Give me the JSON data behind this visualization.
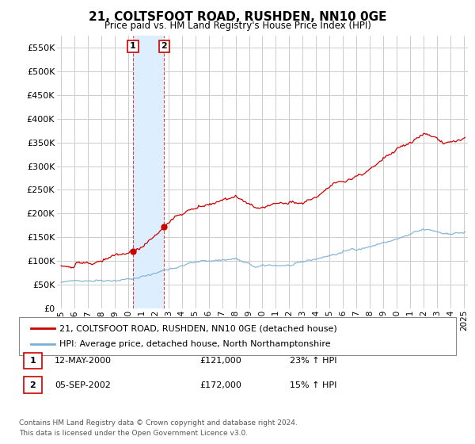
{
  "title": "21, COLTSFOOT ROAD, RUSHDEN, NN10 0GE",
  "subtitle": "Price paid vs. HM Land Registry's House Price Index (HPI)",
  "legend_line1": "21, COLTSFOOT ROAD, RUSHDEN, NN10 0GE (detached house)",
  "legend_line2": "HPI: Average price, detached house, North Northamptonshire",
  "footnote": "Contains HM Land Registry data © Crown copyright and database right 2024.\nThis data is licensed under the Open Government Licence v3.0.",
  "transaction1_label": "1",
  "transaction1_date": "12-MAY-2000",
  "transaction1_price": "£121,000",
  "transaction1_hpi": "23% ↑ HPI",
  "transaction2_label": "2",
  "transaction2_date": "05-SEP-2002",
  "transaction2_price": "£172,000",
  "transaction2_hpi": "15% ↑ HPI",
  "marker1_x": 2000.36,
  "marker1_y": 121000,
  "marker2_x": 2002.67,
  "marker2_y": 172000,
  "shade1_x": 2000.36,
  "shade2_x": 2002.67,
  "line_color_red": "#cc0000",
  "line_color_blue": "#7aafd4",
  "shade_color": "#ddeeff",
  "background_color": "#ffffff",
  "grid_color": "#cccccc",
  "ylim_min": 0,
  "ylim_max": 575000,
  "yticks": [
    0,
    50000,
    100000,
    150000,
    200000,
    250000,
    300000,
    350000,
    400000,
    450000,
    500000,
    550000
  ],
  "xmin": 1994.7,
  "xmax": 2025.3
}
